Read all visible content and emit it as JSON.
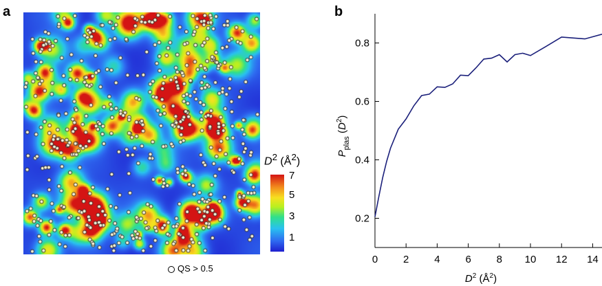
{
  "panel_a": {
    "letter": "a",
    "colorbar": {
      "label_var": "D",
      "label_exp": "2",
      "label_unit": " (Å",
      "label_unit_exp": "2",
      "label_close": ")",
      "ticks": [
        "7",
        "5",
        "3",
        "1"
      ],
      "colors": [
        "#1f1fcf",
        "#2e6bf0",
        "#29c1f0",
        "#30e08a",
        "#b8f020",
        "#f7e020",
        "#f28a1c",
        "#d41414"
      ]
    },
    "legend": {
      "label": "QS > 0.5"
    }
  },
  "panel_b": {
    "letter": "b"
  },
  "chart_data": {
    "type": "line",
    "xlabel": "D2 (Å2)",
    "ylabel": "Pplas (D2)",
    "xlim": [
      0,
      14.6
    ],
    "ylim": [
      0.1,
      0.9
    ],
    "xticks": [
      0,
      2,
      4,
      6,
      8,
      10,
      12,
      14
    ],
    "yticks": [
      0.2,
      0.4,
      0.6,
      0.8
    ],
    "series": [
      {
        "color": "#1a1f7a",
        "x": [
          0,
          0.25,
          0.5,
          0.75,
          1.0,
          1.5,
          2.0,
          2.5,
          3.0,
          3.5,
          4.0,
          4.5,
          5.0,
          5.5,
          6.0,
          6.5,
          7.0,
          7.5,
          8.0,
          8.5,
          9.0,
          9.5,
          10.0,
          11.0,
          12.0,
          13.0,
          13.5,
          14.6
        ],
        "y": [
          0.205,
          0.275,
          0.34,
          0.395,
          0.44,
          0.505,
          0.54,
          0.585,
          0.62,
          0.625,
          0.65,
          0.648,
          0.66,
          0.69,
          0.688,
          0.715,
          0.745,
          0.748,
          0.76,
          0.735,
          0.76,
          0.765,
          0.757,
          0.788,
          0.82,
          0.816,
          0.814,
          0.83
        ]
      }
    ]
  }
}
